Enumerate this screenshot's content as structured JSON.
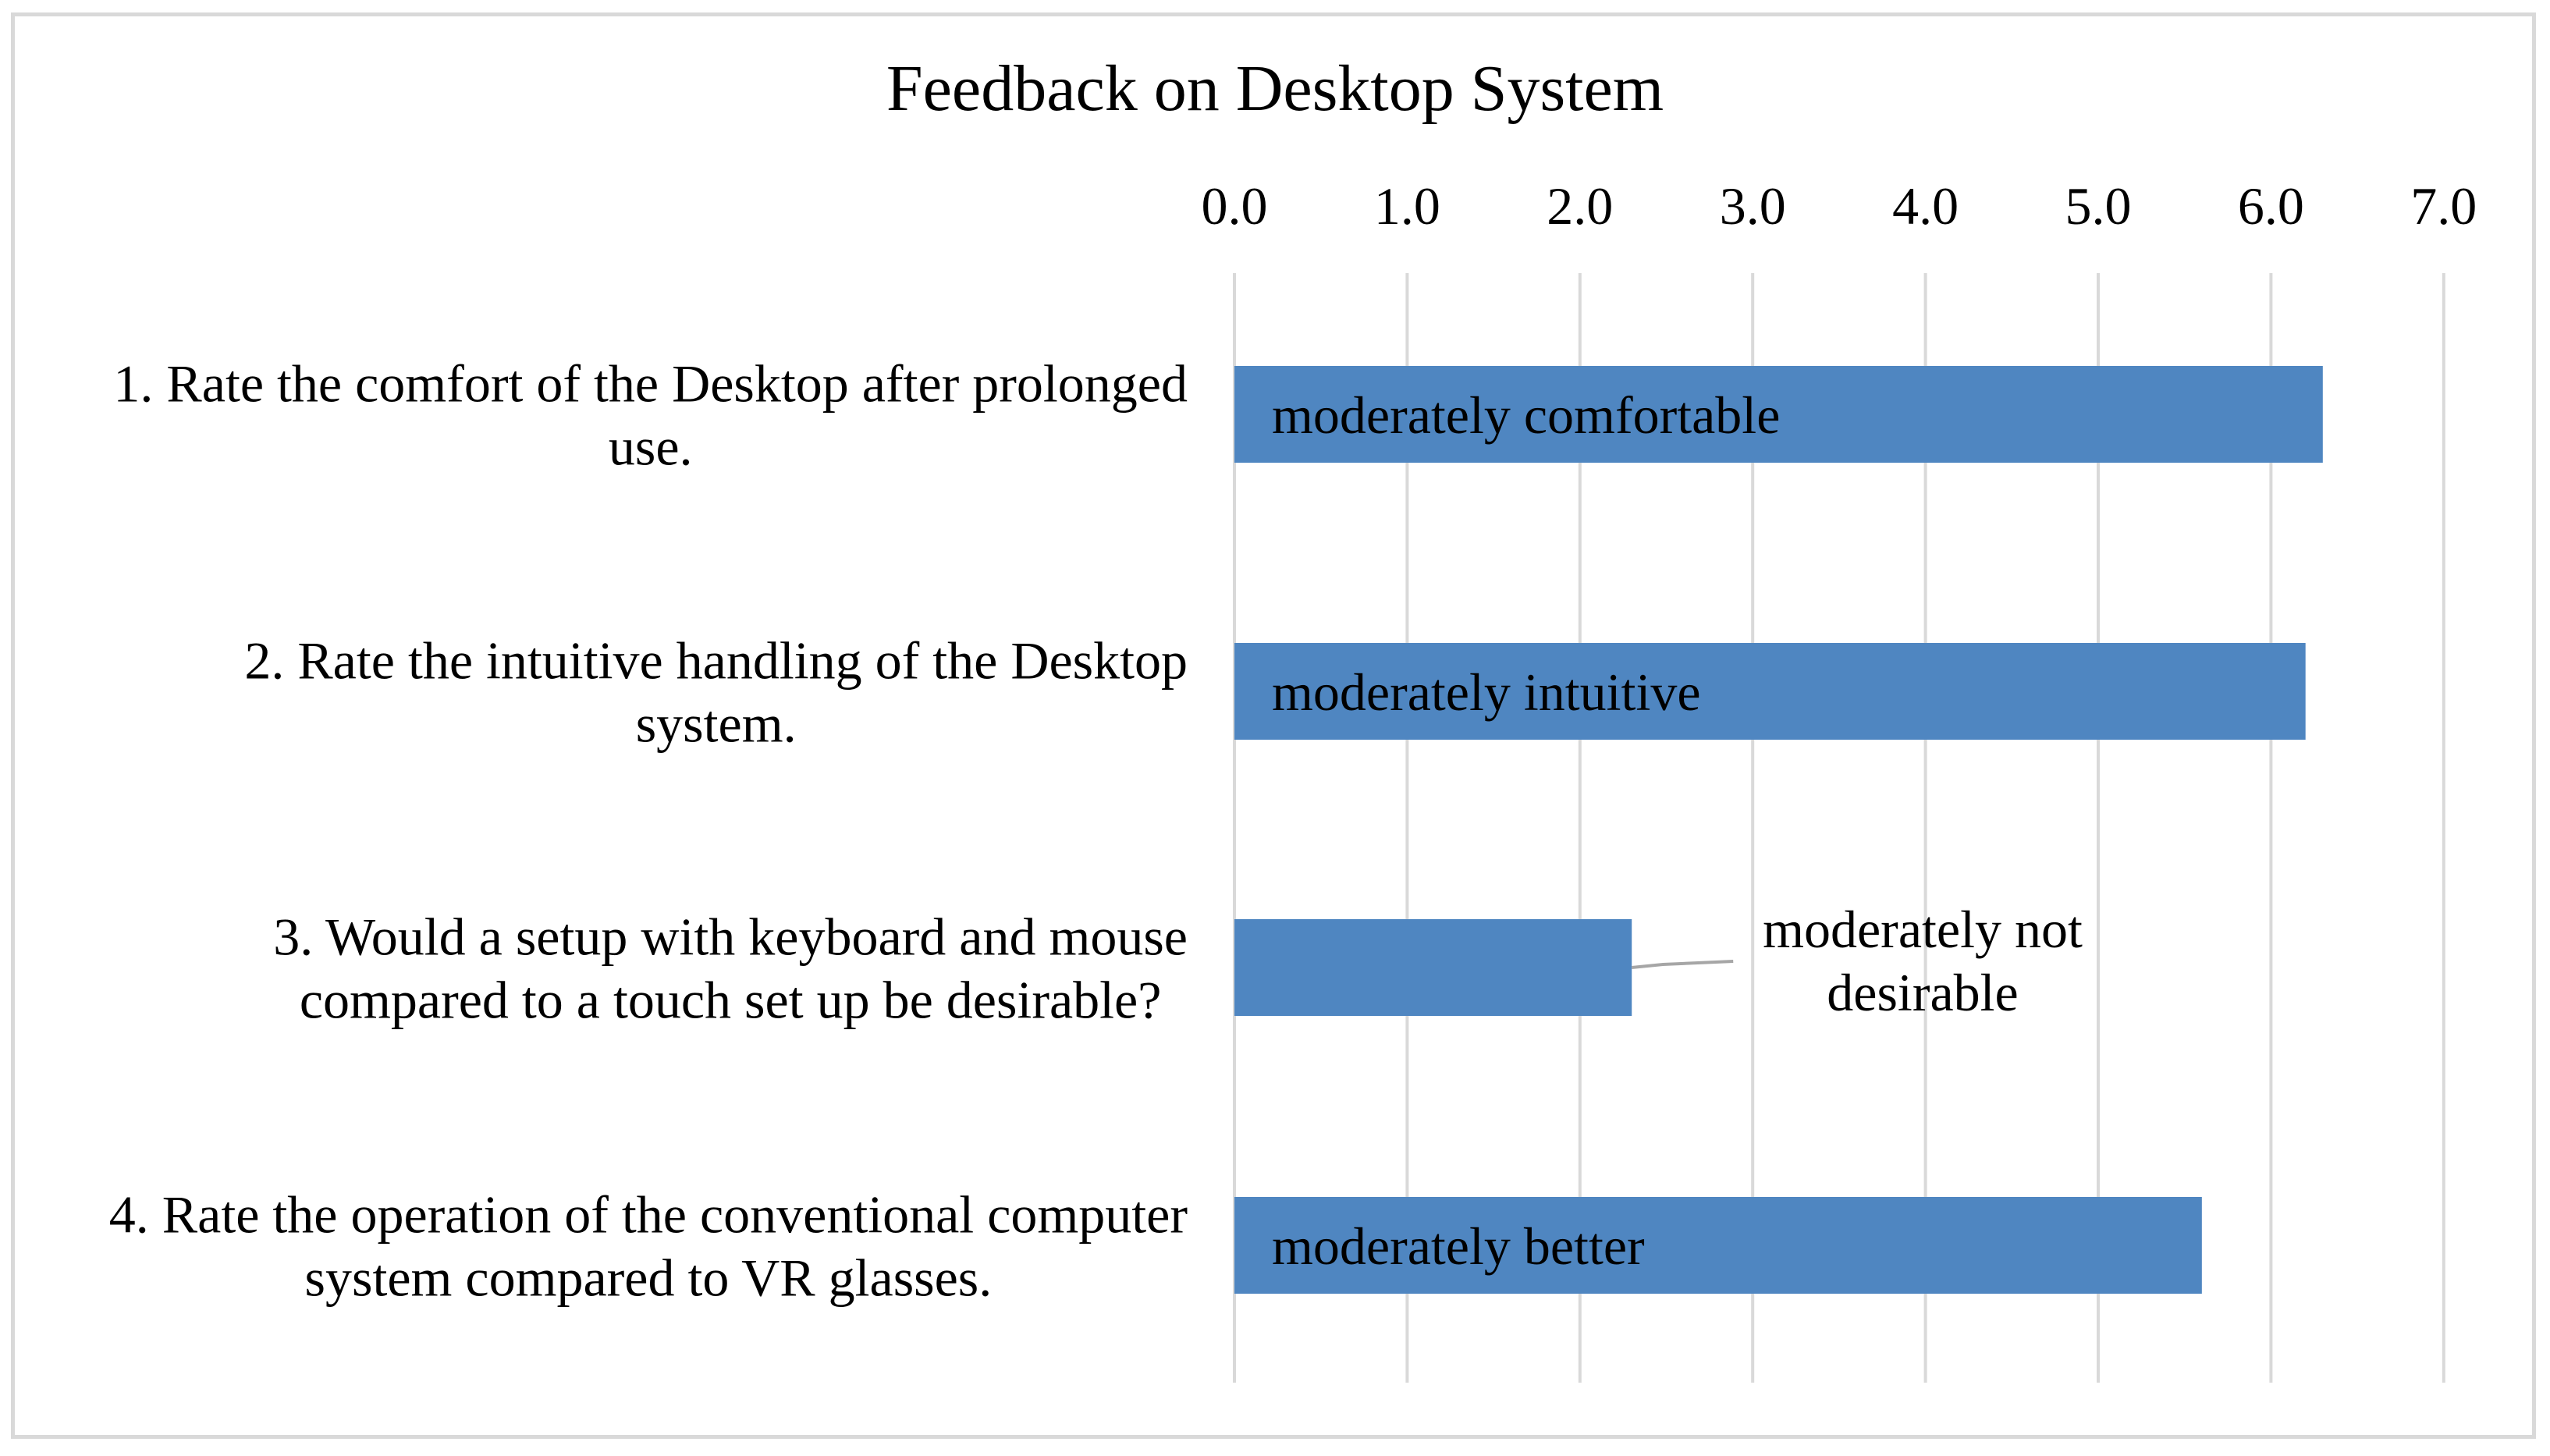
{
  "chart_data": {
    "type": "bar",
    "orientation": "horizontal",
    "title": "Feedback on Desktop System",
    "xlabel": "",
    "ylabel": "",
    "xlim": [
      0,
      7
    ],
    "x_ticks": [
      "0.0",
      "1.0",
      "2.0",
      "3.0",
      "4.0",
      "5.0",
      "6.0",
      "7.0"
    ],
    "x_axis_position": "top",
    "grid": "vertical",
    "legend": "none",
    "bar_color": "#4f86c1",
    "categories": [
      [
        "1. Rate the comfort of the Desktop after prolonged",
        "use."
      ],
      [
        "2. Rate the intuitive handling of the Desktop",
        "system."
      ],
      [
        "3. Would a setup with keyboard and mouse",
        "compared to a touch set up be desirable?"
      ],
      [
        "4. Rate the operation of the conventional computer",
        "system compared to VR glasses."
      ]
    ],
    "values": [
      6.3,
      6.2,
      2.3,
      5.6
    ],
    "data_labels": [
      [
        "moderately comfortable"
      ],
      [
        "moderately intuitive"
      ],
      [
        "moderately not",
        "desirable"
      ],
      [
        "moderately better"
      ]
    ]
  }
}
